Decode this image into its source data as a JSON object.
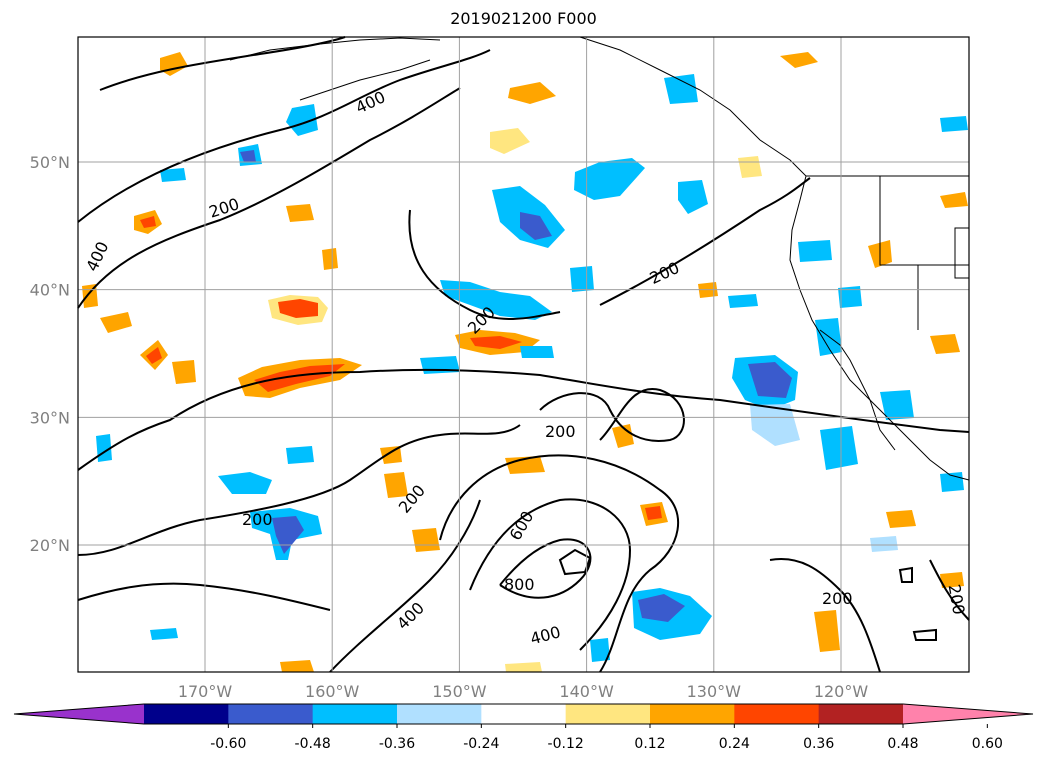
{
  "title": "2019021200 F000",
  "map": {
    "lat_ticks": [
      {
        "label": "50°N",
        "value": 50
      },
      {
        "label": "40°N",
        "value": 40
      },
      {
        "label": "30°N",
        "value": 30
      },
      {
        "label": "20°N",
        "value": 20
      }
    ],
    "lon_ticks": [
      {
        "label": "170°W",
        "value": -170
      },
      {
        "label": "160°W",
        "value": -160
      },
      {
        "label": "150°W",
        "value": -150
      },
      {
        "label": "140°W",
        "value": -140
      },
      {
        "label": "130°W",
        "value": -130
      },
      {
        "label": "120°W",
        "value": -120
      }
    ],
    "extent": {
      "lon_min": -180,
      "lon_max": -110,
      "lat_min": 10,
      "lat_max": 60
    },
    "contour_labels": [
      "400",
      "200",
      "400",
      "200",
      "200",
      "200",
      "200",
      "200",
      "200",
      "600",
      "800",
      "400",
      "400",
      "200",
      "200"
    ]
  },
  "colorbar": {
    "ticks": [
      "-0.60",
      "-0.48",
      "-0.36",
      "-0.24",
      "-0.12",
      "0.12",
      "0.24",
      "0.36",
      "0.48",
      "0.60"
    ],
    "colors": [
      "#9932cc",
      "#00008b",
      "#3a5bcd",
      "#00bfff",
      "#b0e0ff",
      "#ffffff",
      "#ffe680",
      "#ffa500",
      "#ff4500",
      "#b22222",
      "#ff82ab"
    ]
  }
}
